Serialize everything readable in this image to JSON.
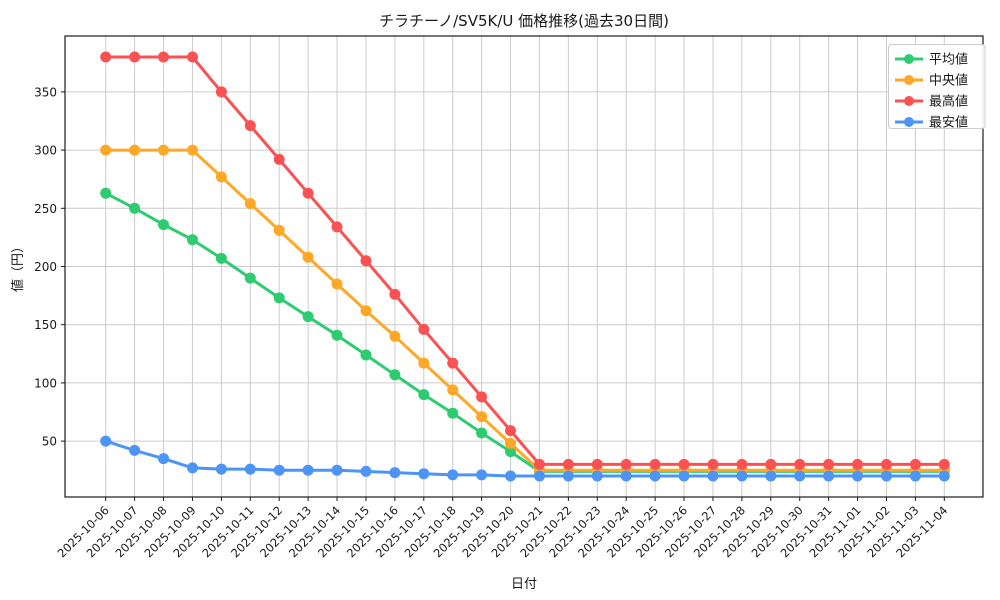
{
  "window": {
    "background": "#ffffff"
  },
  "chart_data": {
    "type": "line",
    "title": "チラチーノ/SV5K/U 価格推移(過去30日間)",
    "xlabel": "日付",
    "ylabel": "値（円）",
    "x": [
      "2025-10-06",
      "2025-10-07",
      "2025-10-08",
      "2025-10-09",
      "2025-10-10",
      "2025-10-11",
      "2025-10-12",
      "2025-10-13",
      "2025-10-14",
      "2025-10-15",
      "2025-10-16",
      "2025-10-17",
      "2025-10-18",
      "2025-10-19",
      "2025-10-20",
      "2025-10-21",
      "2025-10-22",
      "2025-10-23",
      "2025-10-24",
      "2025-10-25",
      "2025-10-26",
      "2025-10-27",
      "2025-10-28",
      "2025-10-29",
      "2025-10-30",
      "2025-10-31",
      "2025-11-01",
      "2025-11-02",
      "2025-11-03",
      "2025-11-04"
    ],
    "series": [
      {
        "name": "平均値",
        "color": "#2ecc71",
        "values": [
          263,
          250,
          236,
          223,
          207,
          190,
          173,
          157,
          141,
          124,
          107,
          90,
          74,
          57,
          41,
          24,
          24,
          24,
          24,
          24,
          24,
          24,
          24,
          24,
          24,
          24,
          24,
          24,
          24,
          24
        ]
      },
      {
        "name": "中央値",
        "color": "#ffa726",
        "values": [
          300,
          300,
          300,
          300,
          277,
          254,
          231,
          208,
          185,
          162,
          140,
          117,
          94,
          71,
          48,
          25,
          25,
          25,
          25,
          25,
          25,
          25,
          25,
          25,
          25,
          25,
          25,
          25,
          25,
          25
        ]
      },
      {
        "name": "最高値",
        "color": "#fa5252",
        "values": [
          380,
          380,
          380,
          380,
          350,
          321,
          292,
          263,
          234,
          205,
          176,
          146,
          117,
          88,
          59,
          30,
          30,
          30,
          30,
          30,
          30,
          30,
          30,
          30,
          30,
          30,
          30,
          30,
          30,
          30
        ]
      },
      {
        "name": "最安値",
        "color": "#4d94f7",
        "values": [
          50,
          42,
          35,
          27,
          26,
          26,
          25,
          25,
          25,
          24,
          23,
          22,
          21,
          21,
          20,
          20,
          20,
          20,
          20,
          20,
          20,
          20,
          20,
          20,
          20,
          20,
          20,
          20,
          20,
          20
        ]
      }
    ],
    "yticks": [
      50,
      100,
      150,
      200,
      250,
      300,
      350
    ],
    "ylim": [
      2,
      398
    ],
    "grid": true,
    "legend_position": "upper right",
    "colors": {
      "grid": "#cccccc",
      "axis": "#1a1a1a"
    }
  }
}
